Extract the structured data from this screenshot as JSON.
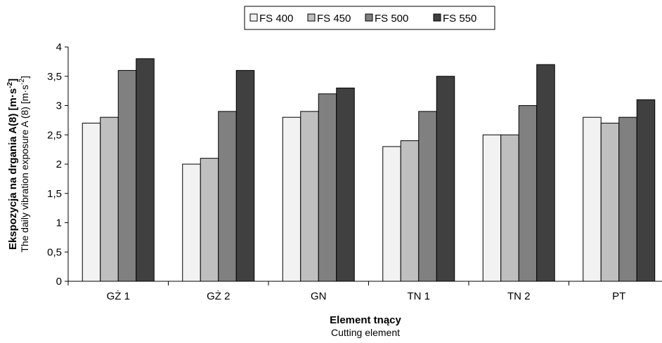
{
  "chart_data": {
    "type": "bar",
    "categories": [
      "GŻ 1",
      "GŻ 2",
      "GN",
      "TN 1",
      "TN 2",
      "PT"
    ],
    "series": [
      {
        "name": "FS 400",
        "color": "#f2f2f2",
        "values": [
          2.7,
          2.0,
          2.8,
          2.3,
          2.5,
          2.8
        ]
      },
      {
        "name": "FS 450",
        "color": "#bfbfbf",
        "values": [
          2.8,
          2.1,
          2.9,
          2.4,
          2.5,
          2.7
        ]
      },
      {
        "name": "FS 500",
        "color": "#808080",
        "values": [
          3.6,
          2.9,
          3.2,
          2.9,
          3.0,
          2.8
        ]
      },
      {
        "name": "FS 550",
        "color": "#404040",
        "values": [
          3.8,
          3.6,
          3.3,
          3.5,
          3.7,
          3.1
        ]
      }
    ],
    "yticks": [
      "0",
      "0,5",
      "1",
      "1,5",
      "2",
      "2,5",
      "3",
      "3,5",
      "4"
    ],
    "ylim": [
      0,
      4
    ],
    "ylabel_pl": "Ekspozycja na drgania A(8) [m·s",
    "ylabel_pl_sup": "-2",
    "ylabel_pl_end": "]",
    "ylabel_en": "The daily vibration exposure A (8) [m·s",
    "ylabel_en_sup": "-2",
    "ylabel_en_end": "]",
    "xlabel_pl": "Element tnący",
    "xlabel_en": "Cutting element",
    "legend_position": "top-center",
    "grid": false
  }
}
